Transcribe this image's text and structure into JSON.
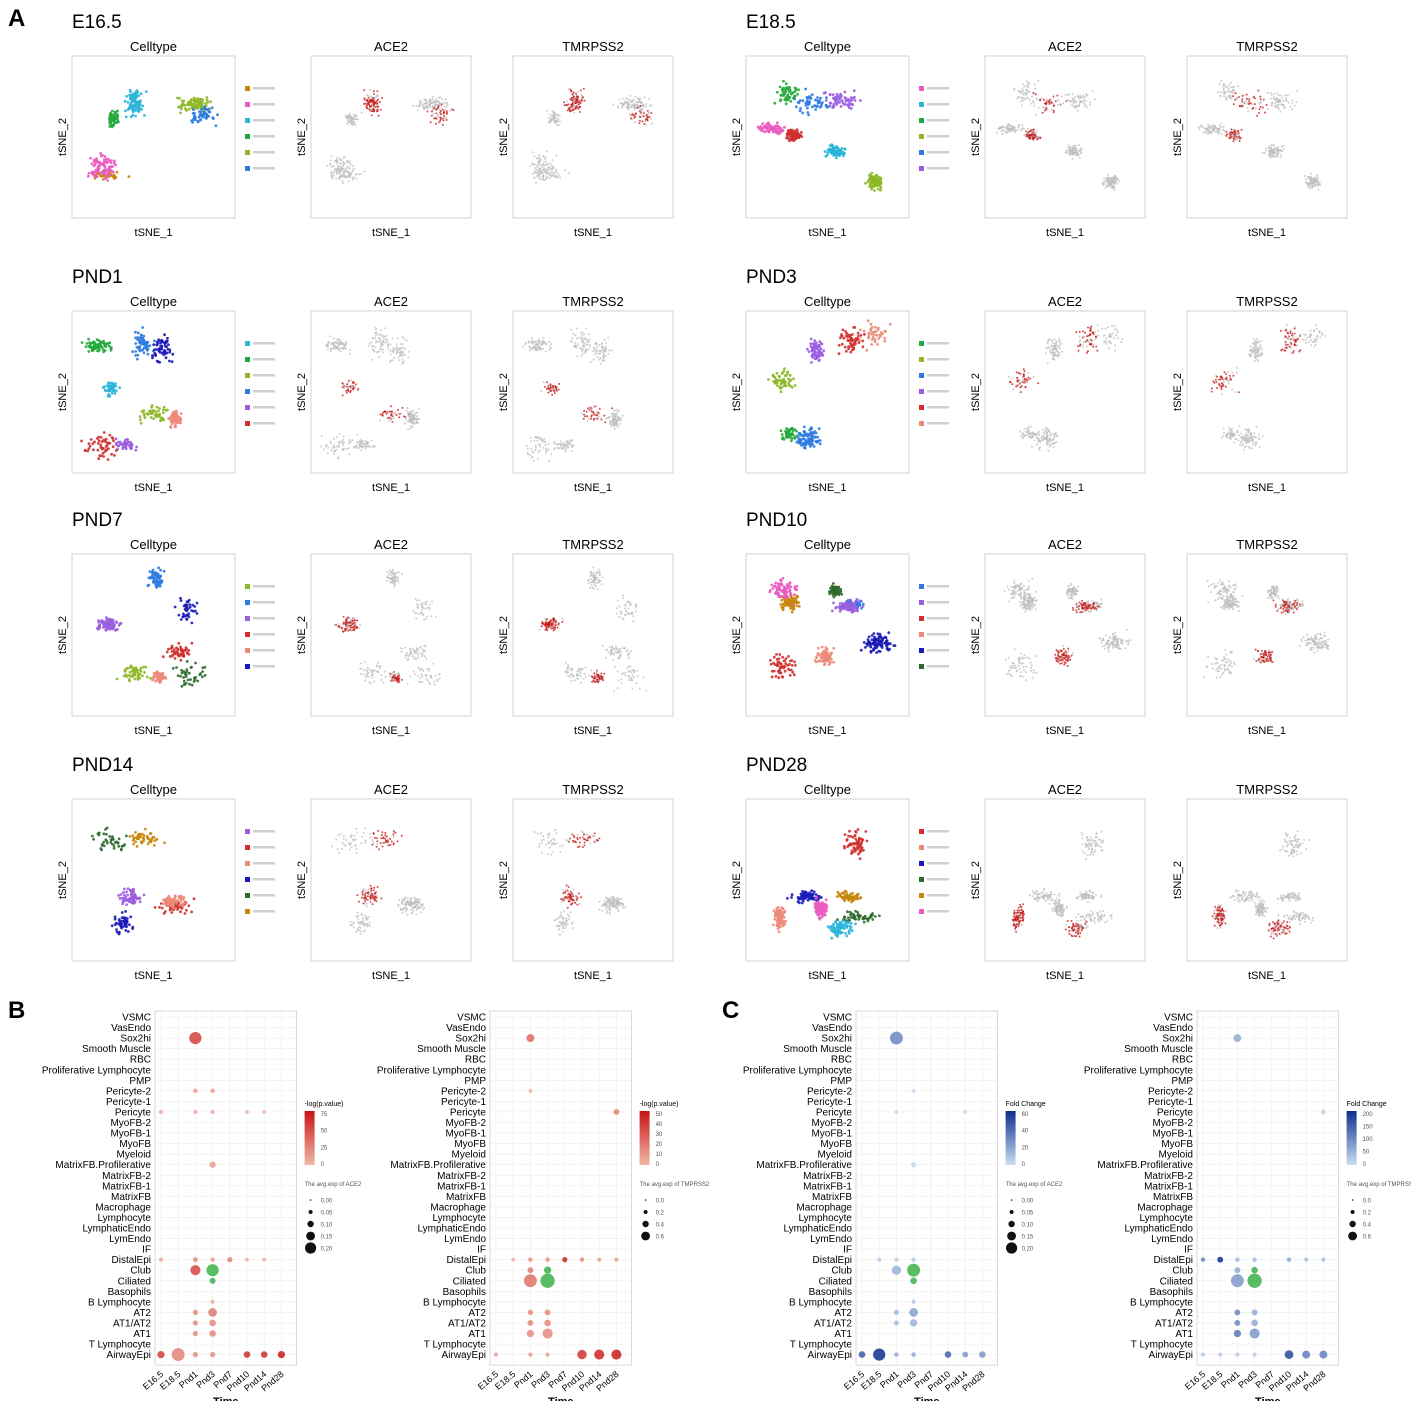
{
  "panels": {
    "A": "A",
    "B": "B",
    "C": "C"
  },
  "tsne": {
    "col_titles": [
      "Celltype",
      "ACE2",
      "TMRPSS2"
    ],
    "xlabel": "tSNE_1",
    "ylabel": "tSNE_2",
    "timepoints": [
      "E16.5",
      "E18.5",
      "PND1",
      "PND3",
      "PND7",
      "PND10",
      "PND14",
      "PND28"
    ]
  },
  "colors": {
    "orange": "#c8860a",
    "pink": "#ea5ac0",
    "cyan": "#2ab4d8",
    "green": "#22a83a",
    "lime": "#8db826",
    "blue": "#2d7be0",
    "purple": "#9b5de0",
    "red": "#d03030",
    "salmon": "#ec8a78",
    "gray": "#bdbdbd",
    "navy": "#1a1ab8",
    "darkgreen": "#2f6a2f",
    "expr_red": "#c81414",
    "expr_red_light": "#f0b8a8",
    "blue_dark": "#0d2f8c",
    "blue_light": "#c9dff2",
    "club_green": "#3cb24a"
  },
  "dot_plots": {
    "rows": [
      "VSMC",
      "VasEndo",
      "Sox2hi",
      "Smooth Muscle",
      "RBC",
      "Proliferative Lymphocyte",
      "PMP",
      "Pericyte-2",
      "Pericyte-1",
      "Pericyte",
      "MyoFB-2",
      "MyoFB-1",
      "MyoFB",
      "Myeloid",
      "MatrixFB.Profilerative",
      "MatrixFB-2",
      "MatrixFB-1",
      "MatrixFB",
      "Macrophage",
      "Lymphocyte",
      "LymphaticEndo",
      "LymEndo",
      "IF",
      "DistalEpi",
      "Club",
      "Ciliated",
      "Basophils",
      "B Lymphocyte",
      "AT2",
      "AT1/AT2",
      "AT1",
      "T Lymphocyte",
      "AirwayEpi"
    ],
    "cols": [
      "E16.5",
      "E18.5",
      "Pnd1",
      "Pnd3",
      "Pnd7",
      "Pnd10",
      "Pnd14",
      "Pnd28"
    ],
    "xlabel": "Time",
    "plots": [
      {
        "id": "B-ACE2",
        "color_legend": {
          "title": "-log(p.value)",
          "ticks": [
            "75",
            "50",
            "25",
            "0"
          ]
        },
        "size_legend": {
          "title": "The avg.exp of ACE2",
          "ticks": [
            "0.00",
            "0.05",
            "0.10",
            "0.15",
            "0.20"
          ]
        },
        "dots": [
          [
            "Sox2hi",
            "Pnd1",
            0.7,
            0.75
          ],
          [
            "Pericyte",
            "E16.5",
            0.12,
            0.1
          ],
          [
            "Pericyte",
            "Pnd1",
            0.12,
            0.1
          ],
          [
            "Pericyte",
            "Pnd3",
            0.12,
            0.1
          ],
          [
            "Pericyte",
            "Pnd10",
            0.1,
            0.05
          ],
          [
            "Pericyte",
            "Pnd14",
            0.1,
            0.05
          ],
          [
            "Pericyte-2",
            "Pnd1",
            0.15,
            0.2
          ],
          [
            "Pericyte-2",
            "Pnd3",
            0.15,
            0.2
          ],
          [
            "MatrixFB.Profilerative",
            "Pnd3",
            0.28,
            0.2
          ],
          [
            "DistalEpi",
            "E16.5",
            0.12,
            0.15
          ],
          [
            "DistalEpi",
            "Pnd1",
            0.18,
            0.3
          ],
          [
            "DistalEpi",
            "Pnd7",
            0.2,
            0.35
          ],
          [
            "DistalEpi",
            "Pnd3",
            0.15,
            0.2
          ],
          [
            "DistalEpi",
            "Pnd10",
            0.1,
            0.1
          ],
          [
            "DistalEpi",
            "Pnd14",
            0.1,
            0.1
          ],
          [
            "Club",
            "Pnd1",
            0.55,
            0.7
          ],
          [
            "Club",
            "Pnd3",
            0.7,
            0.25
          ],
          [
            "Ciliated",
            "Pnd3",
            0.25,
            0.15
          ],
          [
            "B Lymphocyte",
            "Pnd3",
            0.12,
            0.1
          ],
          [
            "AT2",
            "Pnd1",
            0.2,
            0.3
          ],
          [
            "AT2",
            "Pnd3",
            0.45,
            0.4
          ],
          [
            "AT1/AT2",
            "Pnd1",
            0.2,
            0.3
          ],
          [
            "AT1/AT2",
            "Pnd3",
            0.3,
            0.3
          ],
          [
            "AT1",
            "Pnd1",
            0.2,
            0.3
          ],
          [
            "AT1",
            "Pnd3",
            0.3,
            0.3
          ],
          [
            "AirwayEpi",
            "E16.5",
            0.35,
            0.75
          ],
          [
            "AirwayEpi",
            "E18.5",
            0.75,
            0.35
          ],
          [
            "AirwayEpi",
            "Pnd1",
            0.2,
            0.3
          ],
          [
            "AirwayEpi",
            "Pnd3",
            0.2,
            0.3
          ],
          [
            "AirwayEpi",
            "Pnd10",
            0.3,
            0.85
          ],
          [
            "AirwayEpi",
            "Pnd14",
            0.3,
            0.85
          ],
          [
            "AirwayEpi",
            "Pnd28",
            0.35,
            0.95
          ]
        ]
      },
      {
        "id": "B-TMPRSS2",
        "color_legend": {
          "title": "-log(p.value)",
          "ticks": [
            "50",
            "40",
            "30",
            "20",
            "10",
            "0"
          ]
        },
        "size_legend": {
          "title": "The avg.exp of TMPRSS2",
          "ticks": [
            "0.0",
            "0.2",
            "0.4",
            "0.6"
          ]
        },
        "dots": [
          [
            "Sox2hi",
            "Pnd1",
            0.4,
            0.5
          ],
          [
            "Pericyte",
            "Pnd28",
            0.25,
            0.35
          ],
          [
            "Pericyte-2",
            "Pnd1",
            0.1,
            0.1
          ],
          [
            "DistalEpi",
            "Pnd1",
            0.15,
            0.25
          ],
          [
            "DistalEpi",
            "Pnd3",
            0.15,
            0.25
          ],
          [
            "DistalEpi",
            "Pnd7",
            0.2,
            0.9
          ],
          [
            "DistalEpi",
            "Pnd10",
            0.15,
            0.3
          ],
          [
            "DistalEpi",
            "Pnd14",
            0.12,
            0.2
          ],
          [
            "DistalEpi",
            "Pnd28",
            0.12,
            0.2
          ],
          [
            "DistalEpi",
            "E18.5",
            0.1,
            0.1
          ],
          [
            "Club",
            "Pnd1",
            0.25,
            0.4
          ],
          [
            "Club",
            "Pnd3",
            0.35,
            0.25
          ],
          [
            "Ciliated",
            "Pnd1",
            0.75,
            0.45
          ],
          [
            "Ciliated",
            "Pnd3",
            0.85,
            0.35
          ],
          [
            "AT2",
            "Pnd1",
            0.2,
            0.3
          ],
          [
            "AT2",
            "Pnd3",
            0.25,
            0.3
          ],
          [
            "AT1/AT2",
            "Pnd1",
            0.25,
            0.3
          ],
          [
            "AT1/AT2",
            "Pnd3",
            0.3,
            0.3
          ],
          [
            "AT1",
            "Pnd1",
            0.35,
            0.3
          ],
          [
            "AT1",
            "Pnd3",
            0.55,
            0.3
          ],
          [
            "AirwayEpi",
            "E16.5",
            0.12,
            0.15
          ],
          [
            "AirwayEpi",
            "Pnd1",
            0.12,
            0.2
          ],
          [
            "AirwayEpi",
            "Pnd3",
            0.12,
            0.2
          ],
          [
            "AirwayEpi",
            "Pnd10",
            0.5,
            0.8
          ],
          [
            "AirwayEpi",
            "Pnd14",
            0.55,
            0.9
          ],
          [
            "AirwayEpi",
            "Pnd28",
            0.55,
            0.95
          ]
        ]
      },
      {
        "id": "C-ACE2",
        "color_legend": {
          "title": "Fold Change",
          "ticks": [
            "60",
            "40",
            "20",
            "0"
          ]
        },
        "size_legend": {
          "title": "The avg.exp of ACE2",
          "ticks": [
            "0.00",
            "0.05",
            "0.10",
            "0.15",
            "0.20"
          ]
        },
        "dots": [
          [
            "Sox2hi",
            "Pnd1",
            0.75,
            0.5
          ],
          [
            "Pericyte",
            "Pnd1",
            0.1,
            0.05
          ],
          [
            "Pericyte",
            "Pnd14",
            0.1,
            0.05
          ],
          [
            "Pericyte-2",
            "Pnd3",
            0.1,
            0.05
          ],
          [
            "MatrixFB.Profilerative",
            "Pnd3",
            0.2,
            0.05
          ],
          [
            "DistalEpi",
            "E18.5",
            0.12,
            0.1
          ],
          [
            "DistalEpi",
            "Pnd1",
            0.12,
            0.1
          ],
          [
            "DistalEpi",
            "Pnd3",
            0.15,
            0.1
          ],
          [
            "Club",
            "Pnd1",
            0.5,
            0.25
          ],
          [
            "Club",
            "Pnd3",
            0.75,
            0.2
          ],
          [
            "Ciliated",
            "Pnd3",
            0.3,
            0.1
          ],
          [
            "B Lymphocyte",
            "Pnd3",
            0.12,
            0.1
          ],
          [
            "AT2",
            "Pnd1",
            0.2,
            0.2
          ],
          [
            "AT2",
            "Pnd3",
            0.45,
            0.35
          ],
          [
            "AT1/AT2",
            "Pnd1",
            0.2,
            0.2
          ],
          [
            "AT1/AT2",
            "Pnd3",
            0.35,
            0.25
          ],
          [
            "AirwayEpi",
            "E16.5",
            0.3,
            0.75
          ],
          [
            "AirwayEpi",
            "E18.5",
            0.7,
            1.0
          ],
          [
            "AirwayEpi",
            "Pnd1",
            0.15,
            0.3
          ],
          [
            "AirwayEpi",
            "Pnd3",
            0.15,
            0.3
          ],
          [
            "AirwayEpi",
            "Pnd10",
            0.3,
            0.7
          ],
          [
            "AirwayEpi",
            "Pnd14",
            0.25,
            0.4
          ],
          [
            "AirwayEpi",
            "Pnd28",
            0.3,
            0.4
          ]
        ]
      },
      {
        "id": "C-TMPRSS2",
        "color_legend": {
          "title": "Fold Change",
          "ticks": [
            "200",
            "150",
            "100",
            "50",
            "0"
          ]
        },
        "size_legend": {
          "title": "The avg.exp of TMPRSS2",
          "ticks": [
            "0.0",
            "0.2",
            "0.4",
            "0.6"
          ]
        },
        "dots": [
          [
            "Sox2hi",
            "Pnd1",
            0.4,
            0.3
          ],
          [
            "Pericyte",
            "Pnd28",
            0.15,
            0.1
          ],
          [
            "DistalEpi",
            "E16.5",
            0.15,
            0.5
          ],
          [
            "DistalEpi",
            "E18.5",
            0.25,
            1.0
          ],
          [
            "DistalEpi",
            "Pnd1",
            0.15,
            0.2
          ],
          [
            "DistalEpi",
            "Pnd3",
            0.15,
            0.2
          ],
          [
            "DistalEpi",
            "Pnd10",
            0.15,
            0.3
          ],
          [
            "DistalEpi",
            "Pnd14",
            0.12,
            0.2
          ],
          [
            "DistalEpi",
            "Pnd28",
            0.12,
            0.2
          ],
          [
            "Club",
            "Pnd1",
            0.25,
            0.3
          ],
          [
            "Club",
            "Pnd3",
            0.3,
            0.2
          ],
          [
            "Ciliated",
            "Pnd1",
            0.75,
            0.4
          ],
          [
            "Ciliated",
            "Pnd3",
            0.85,
            0.25
          ],
          [
            "AT2",
            "Pnd1",
            0.25,
            0.5
          ],
          [
            "AT2",
            "Pnd3",
            0.25,
            0.3
          ],
          [
            "AT1/AT2",
            "Pnd1",
            0.25,
            0.5
          ],
          [
            "AT1/AT2",
            "Pnd3",
            0.3,
            0.3
          ],
          [
            "AT1",
            "Pnd1",
            0.35,
            0.6
          ],
          [
            "AT1",
            "Pnd3",
            0.55,
            0.4
          ],
          [
            "AirwayEpi",
            "E16.5",
            0.12,
            0.1
          ],
          [
            "AirwayEpi",
            "E18.5",
            0.12,
            0.1
          ],
          [
            "AirwayEpi",
            "Pnd1",
            0.12,
            0.1
          ],
          [
            "AirwayEpi",
            "Pnd3",
            0.12,
            0.1
          ],
          [
            "AirwayEpi",
            "Pnd10",
            0.45,
            0.85
          ],
          [
            "AirwayEpi",
            "Pnd14",
            0.4,
            0.55
          ],
          [
            "AirwayEpi",
            "Pnd28",
            0.4,
            0.55
          ]
        ]
      }
    ]
  }
}
